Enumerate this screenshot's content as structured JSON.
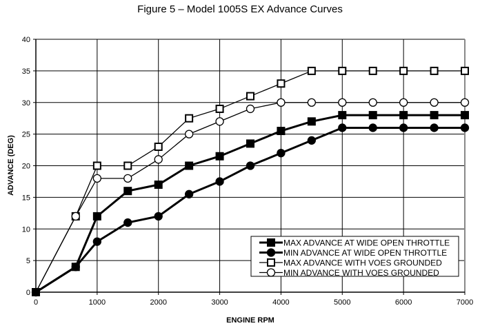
{
  "chart_data": {
    "type": "line",
    "title": "Figure 5 – Model 1005S EX Advance Curves",
    "xlabel": "ENGINE RPM",
    "ylabel": "ADVANCE (DEG)",
    "xlim": [
      0,
      7000
    ],
    "ylim": [
      0,
      40
    ],
    "xticks": [
      0,
      1000,
      2000,
      3000,
      4000,
      5000,
      6000,
      7000
    ],
    "yticks": [
      0,
      5,
      10,
      15,
      20,
      25,
      30,
      35,
      40
    ],
    "grid": true,
    "legend_position": "bottom-right",
    "x": [
      0,
      650,
      1000,
      1500,
      2000,
      2500,
      3000,
      3500,
      4000,
      4500,
      5000,
      5500,
      6000,
      6500,
      7000
    ],
    "series": [
      {
        "name": "MAX ADVANCE AT WIDE OPEN THROTTLE",
        "marker": "filled-square",
        "values": [
          0,
          4,
          12,
          16,
          17,
          20,
          21.5,
          23.5,
          25.5,
          27,
          28,
          28,
          28,
          28,
          28
        ]
      },
      {
        "name": "MIN ADVANCE AT WIDE OPEN THROTTLE",
        "marker": "filled-circle",
        "values": [
          0,
          4,
          8,
          11,
          12,
          15.5,
          17.5,
          20,
          22,
          24,
          26,
          26,
          26,
          26,
          26
        ]
      },
      {
        "name": "MAX ADVANCE WITH VOES GROUNDED",
        "marker": "open-square",
        "values": [
          0,
          12,
          20,
          20,
          23,
          27.5,
          29,
          31,
          33,
          35,
          35,
          35,
          35,
          35,
          35
        ]
      },
      {
        "name": "MIN ADVANCE WITH VOES GROUNDED",
        "marker": "open-circle",
        "values": [
          0,
          12,
          18,
          18,
          21,
          25,
          27,
          29,
          30,
          30,
          30,
          30,
          30,
          30,
          30
        ]
      }
    ]
  }
}
